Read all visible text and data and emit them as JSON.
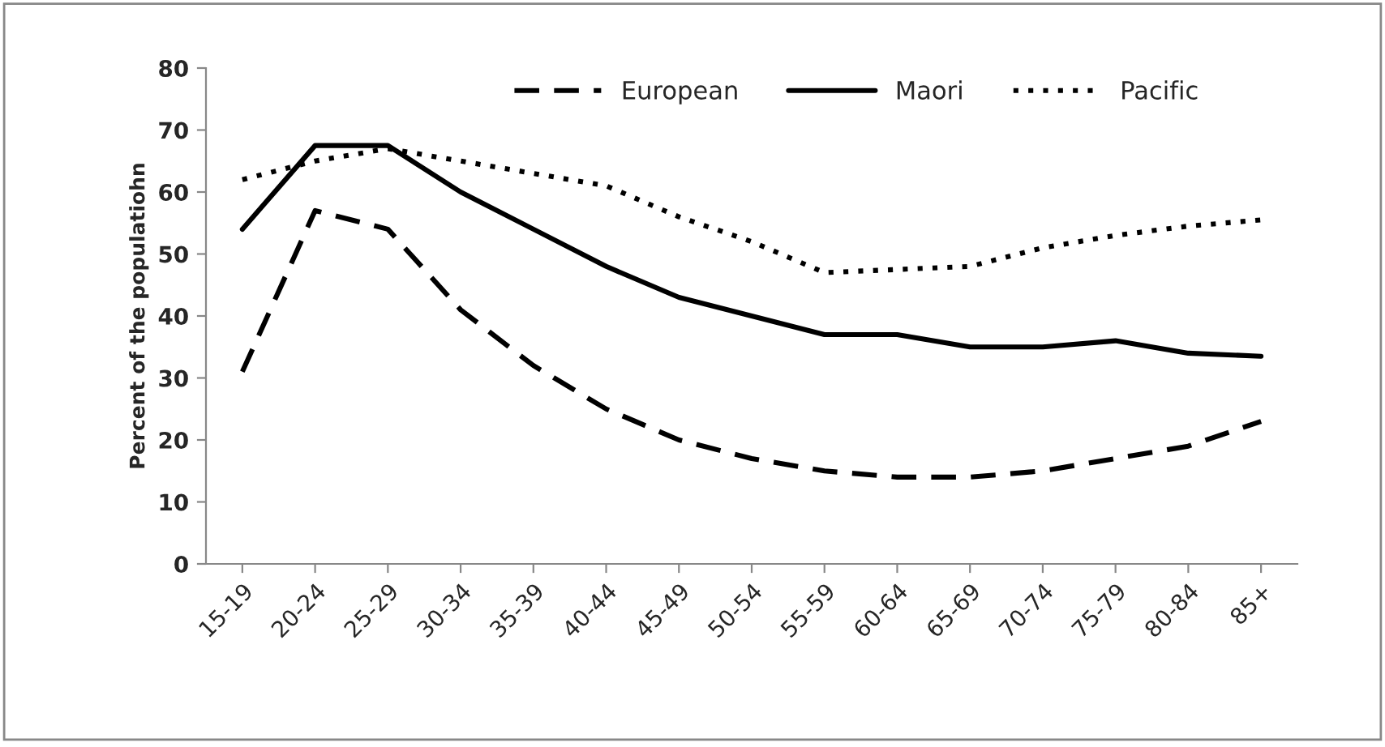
{
  "chart_data": {
    "type": "line",
    "ylabel": "Percent of the populatiohn",
    "categories": [
      "15-19",
      "20-24",
      "25-29",
      "30-34",
      "35-39",
      "40-44",
      "45-49",
      "50-54",
      "55-59",
      "60-64",
      "65-69",
      "70-74",
      "75-79",
      "80-84",
      "85+"
    ],
    "series": [
      {
        "name": "European",
        "color": "#000000",
        "line_style": "dashed",
        "values": [
          31,
          57,
          54,
          41,
          32,
          25,
          20,
          17,
          15,
          14,
          14,
          15,
          17,
          19,
          23
        ]
      },
      {
        "name": "Maori",
        "color": "#000000",
        "line_style": "solid",
        "values": [
          54,
          67.5,
          67.5,
          60,
          54,
          48,
          43,
          40,
          37,
          37,
          35,
          35,
          36,
          34,
          33.5
        ]
      },
      {
        "name": "Pacific",
        "color": "#000000",
        "line_style": "dotted",
        "values": [
          62,
          65,
          67,
          65,
          63,
          61,
          56,
          52,
          47,
          47.5,
          48,
          51,
          53,
          54.5,
          55.5
        ]
      }
    ],
    "ylim": [
      0,
      80
    ],
    "yticks": [
      0,
      10,
      20,
      30,
      40,
      50,
      60,
      70,
      80
    ],
    "grid": false,
    "legend": "top right",
    "marker": "none"
  }
}
